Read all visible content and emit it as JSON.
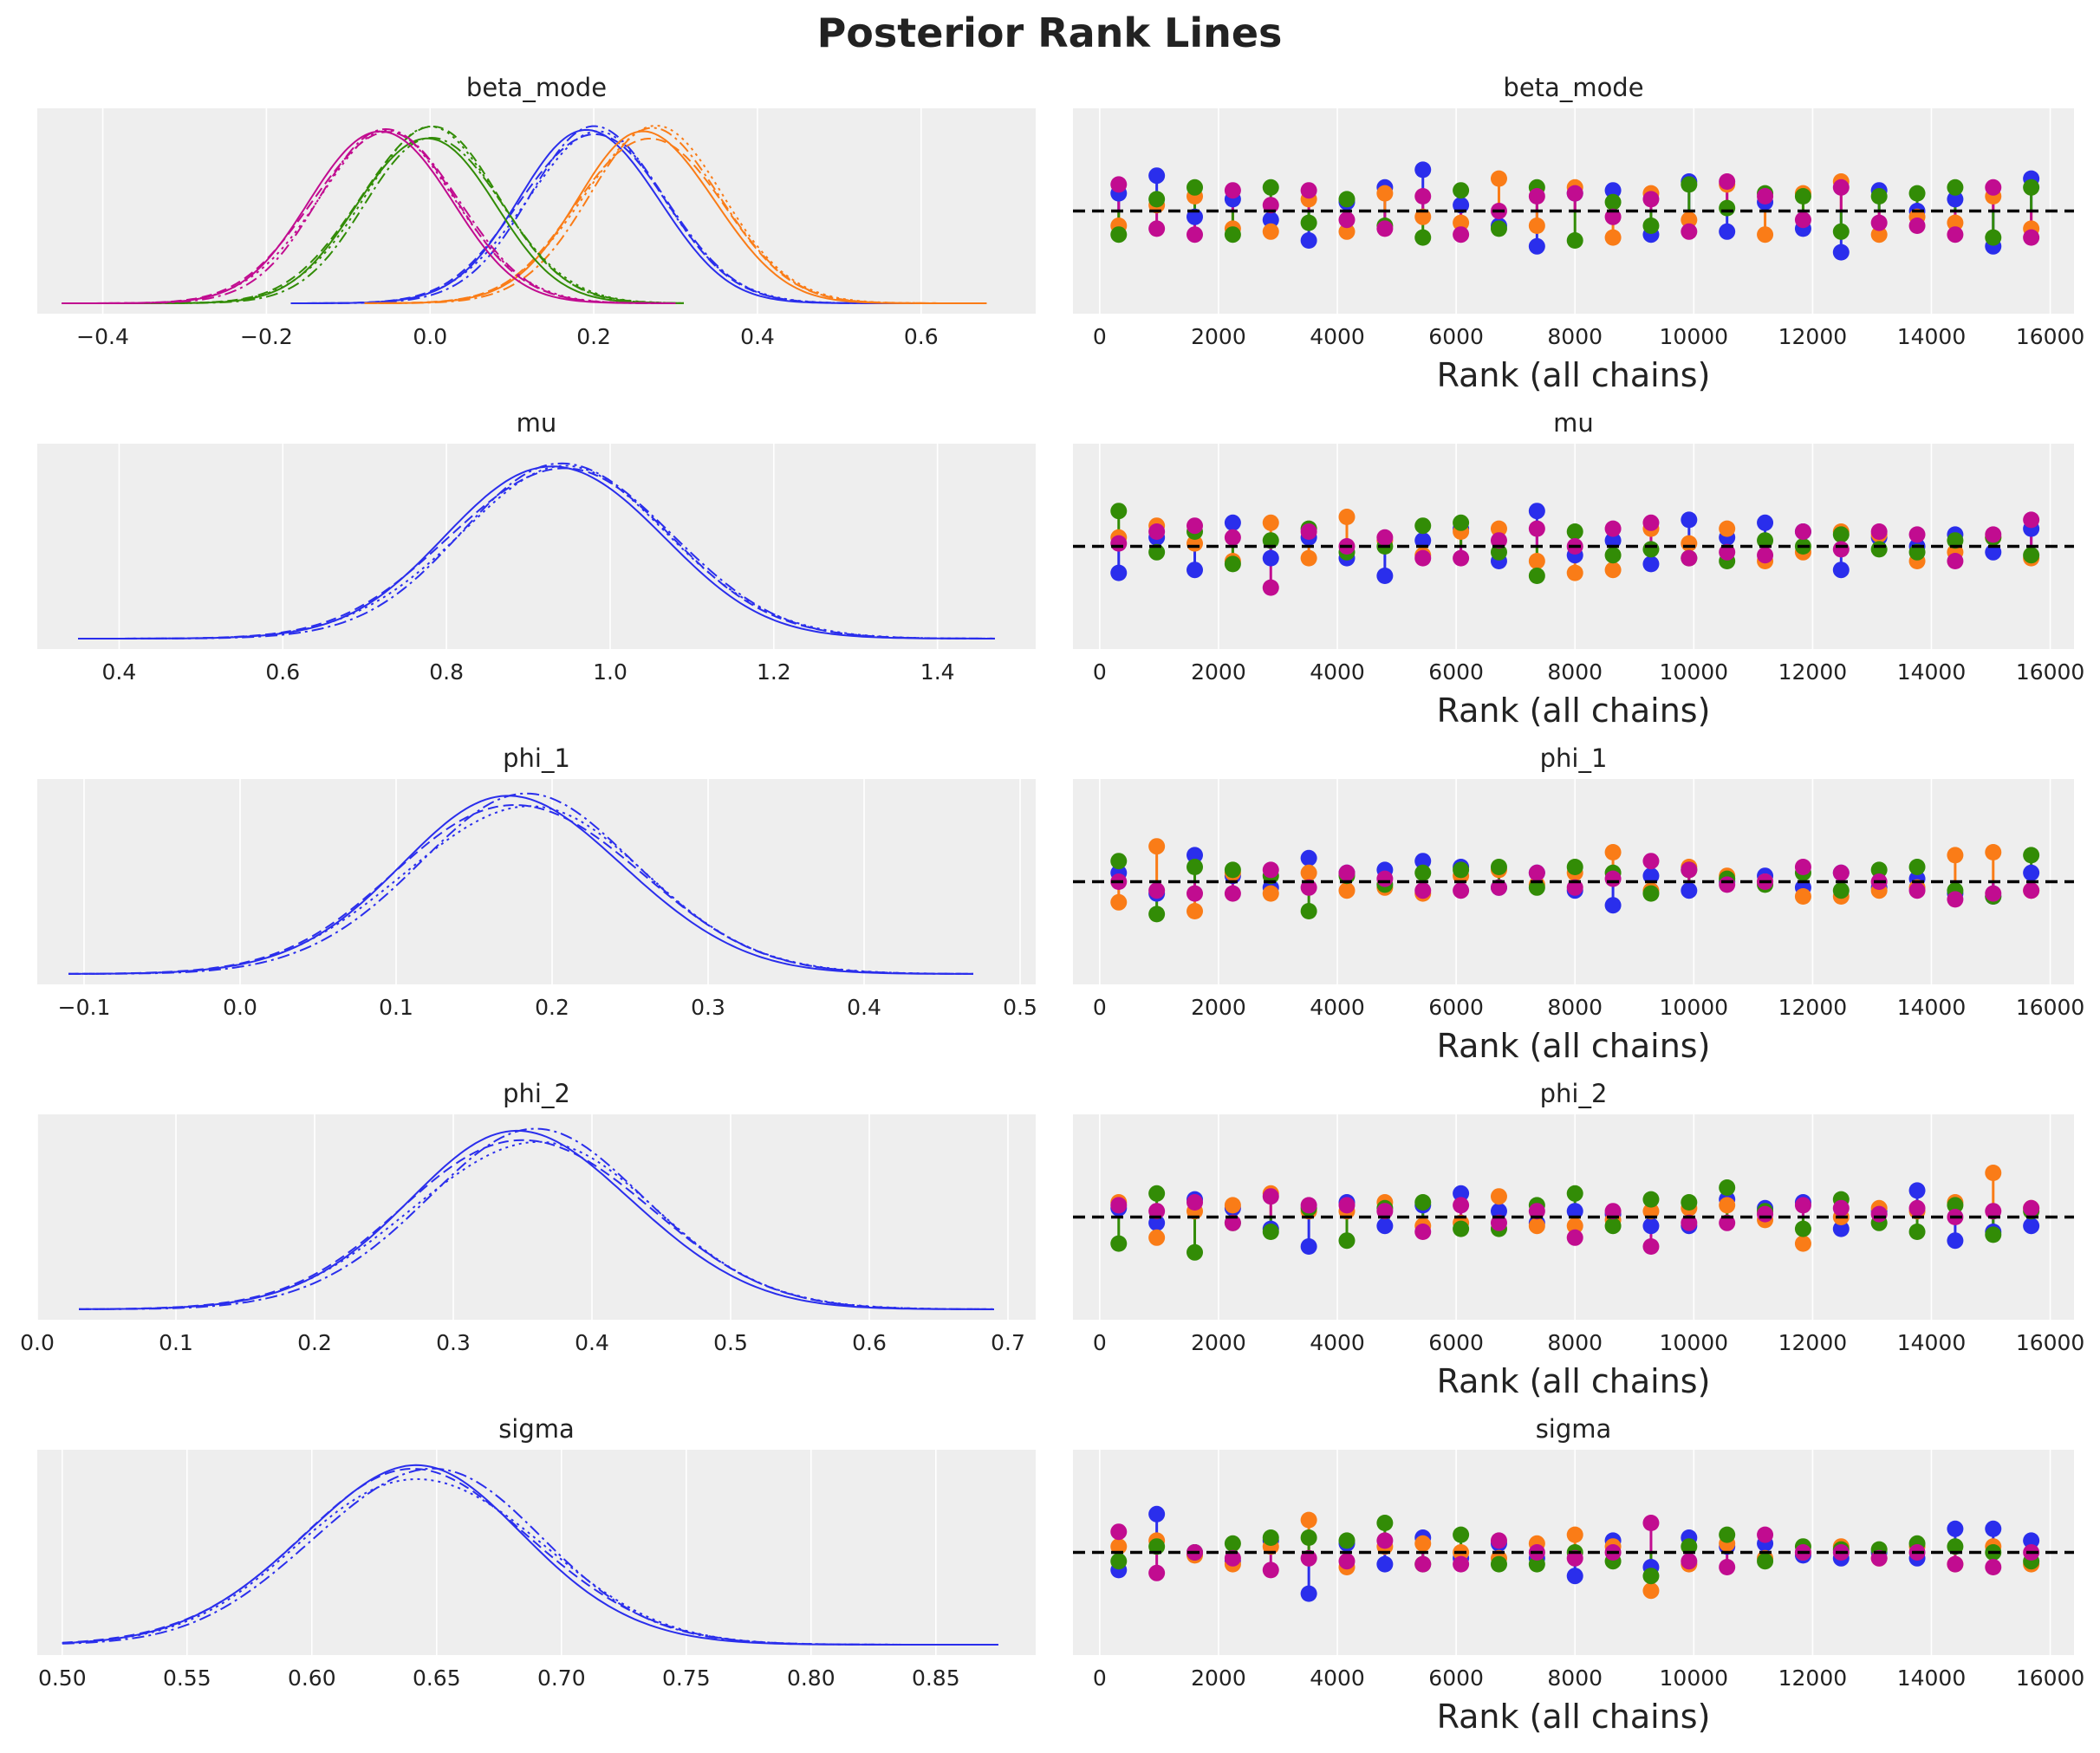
{
  "figure": {
    "title": "Posterior Rank Lines",
    "chain_colors": [
      "#2a2eec",
      "#fa7c17",
      "#328c06",
      "#c10c90"
    ],
    "chain_linestyles": [
      "solid",
      "dashed",
      "dotted",
      "dashdot"
    ],
    "background": "#eeeeee",
    "gridlines": "white, vertical"
  },
  "chart_data": [
    {
      "type": "line",
      "subtype": "kde",
      "title": "beta_mode",
      "xlim": [
        -0.48,
        0.74
      ],
      "xticks": [
        -0.4,
        -0.2,
        0.0,
        0.2,
        0.4,
        0.6
      ],
      "xtick_labels": [
        "−0.4",
        "−0.2",
        "0.0",
        "0.2",
        "0.4",
        "0.6"
      ],
      "xlabel": "",
      "series": [
        {
          "color": "#2a2eec",
          "mean": 0.2,
          "sd": 0.085,
          "xmin": -0.17,
          "xmax": 0.6,
          "curves": 4
        },
        {
          "color": "#fa7c17",
          "mean": 0.27,
          "sd": 0.085,
          "xmin": -0.08,
          "xmax": 0.68,
          "curves": 4
        },
        {
          "color": "#328c06",
          "mean": 0.0,
          "sd": 0.083,
          "xmin": -0.4,
          "xmax": 0.31,
          "curves": 4
        },
        {
          "color": "#c10c90",
          "mean": -0.055,
          "sd": 0.085,
          "xmin": -0.45,
          "xmax": 0.3,
          "curves": 4
        }
      ]
    },
    {
      "type": "scatter",
      "subtype": "rank_vlines",
      "title": "beta_mode",
      "xlim": [
        -450,
        16400
      ],
      "xticks": [
        0,
        2000,
        4000,
        6000,
        8000,
        10000,
        12000,
        14000,
        16000
      ],
      "xtick_labels": [
        "0",
        "2000",
        "4000",
        "6000",
        "8000",
        "10000",
        "12000",
        "14000",
        "16000"
      ],
      "xlabel": "Rank (all chains)",
      "bin_centers": [
        320,
        960,
        1600,
        2240,
        2880,
        3520,
        4160,
        4800,
        5440,
        6080,
        6720,
        7360,
        8000,
        8640,
        9280,
        9920,
        10560,
        11200,
        11840,
        12480,
        13120,
        13760,
        14400,
        15040,
        15680
      ],
      "deviations": [
        [
          0.06,
          0.12,
          -0.02,
          0.04,
          -0.03,
          -0.1,
          0.03,
          0.08,
          0.14,
          0.02,
          -0.05,
          -0.12,
          0.06,
          0.07,
          -0.08,
          0.1,
          -0.07,
          0.03,
          -0.06,
          -0.14,
          0.07,
          0.0,
          0.04,
          -0.12,
          0.11
        ],
        [
          -0.05,
          0.02,
          0.05,
          -0.06,
          -0.07,
          0.04,
          -0.07,
          0.06,
          -0.02,
          -0.04,
          0.11,
          -0.05,
          0.08,
          -0.09,
          0.06,
          -0.03,
          0.09,
          -0.08,
          0.06,
          0.1,
          -0.08,
          -0.02,
          -0.04,
          0.05,
          -0.06
        ],
        [
          -0.08,
          0.04,
          0.08,
          -0.08,
          0.08,
          -0.04,
          0.04,
          -0.05,
          -0.09,
          0.07,
          -0.06,
          0.08,
          -0.1,
          0.03,
          -0.05,
          0.09,
          0.01,
          0.06,
          0.05,
          -0.07,
          0.05,
          0.06,
          0.08,
          -0.09,
          0.08
        ],
        [
          0.09,
          -0.06,
          -0.08,
          0.07,
          0.02,
          0.07,
          -0.03,
          -0.06,
          0.05,
          -0.08,
          0.0,
          0.05,
          0.06,
          -0.02,
          0.04,
          -0.07,
          0.1,
          0.05,
          -0.03,
          0.08,
          -0.04,
          -0.05,
          -0.08,
          0.08,
          -0.09
        ]
      ]
    },
    {
      "type": "line",
      "subtype": "kde",
      "title": "mu",
      "xlim": [
        0.3,
        1.52
      ],
      "xticks": [
        0.4,
        0.6,
        0.8,
        1.0,
        1.2,
        1.4
      ],
      "xtick_labels": [
        "0.4",
        "0.6",
        "0.8",
        "1.0",
        "1.2",
        "1.4"
      ],
      "xlabel": "",
      "series": [
        {
          "color": "#2a2eec",
          "mean": 0.94,
          "sd": 0.13,
          "xmin": 0.35,
          "xmax": 1.47,
          "curves": 4
        }
      ]
    },
    {
      "type": "scatter",
      "subtype": "rank_vlines",
      "title": "mu",
      "xlim": [
        -450,
        16400
      ],
      "xticks": [
        0,
        2000,
        4000,
        6000,
        8000,
        10000,
        12000,
        14000,
        16000
      ],
      "xtick_labels": [
        "0",
        "2000",
        "4000",
        "6000",
        "8000",
        "10000",
        "12000",
        "14000",
        "16000"
      ],
      "xlabel": "Rank (all chains)",
      "bin_centers": [
        320,
        960,
        1600,
        2240,
        2880,
        3520,
        4160,
        4800,
        5440,
        6080,
        6720,
        7360,
        8000,
        8640,
        9280,
        9920,
        10560,
        11200,
        11840,
        12480,
        13120,
        13760,
        14400,
        15040,
        15680
      ],
      "deviations": [
        [
          -0.09,
          0.03,
          -0.08,
          0.08,
          -0.04,
          0.03,
          -0.04,
          -0.1,
          0.02,
          0.06,
          -0.05,
          0.12,
          -0.03,
          0.02,
          -0.06,
          0.09,
          0.03,
          0.08,
          0.05,
          -0.08,
          0.03,
          0.0,
          0.04,
          -0.02,
          0.06
        ],
        [
          0.03,
          0.07,
          0.01,
          -0.05,
          0.08,
          -0.04,
          0.1,
          0.02,
          -0.03,
          0.05,
          0.06,
          -0.05,
          -0.09,
          -0.08,
          0.06,
          0.01,
          0.06,
          -0.05,
          -0.02,
          0.05,
          0.04,
          -0.05,
          -0.02,
          0.03,
          -0.04
        ],
        [
          0.12,
          -0.02,
          0.05,
          -0.06,
          0.02,
          0.06,
          -0.02,
          0.0,
          0.07,
          0.08,
          -0.02,
          -0.1,
          0.05,
          -0.03,
          -0.01,
          -0.04,
          -0.05,
          0.02,
          0.0,
          0.04,
          -0.01,
          -0.02,
          0.02,
          0.03,
          -0.03
        ],
        [
          0.01,
          0.05,
          0.07,
          0.03,
          -0.14,
          0.05,
          0.0,
          0.03,
          -0.04,
          -0.04,
          0.02,
          0.06,
          0.0,
          0.06,
          0.08,
          -0.04,
          -0.02,
          -0.03,
          0.05,
          -0.01,
          0.05,
          0.04,
          -0.05,
          0.04,
          0.09
        ]
      ]
    },
    {
      "type": "line",
      "subtype": "kde",
      "title": "phi_1",
      "xlim": [
        -0.13,
        0.51
      ],
      "xticks": [
        -0.1,
        0.0,
        0.1,
        0.2,
        0.3,
        0.4,
        0.5
      ],
      "xtick_labels": [
        "−0.1",
        "0.0",
        "0.1",
        "0.2",
        "0.3",
        "0.4",
        "0.5"
      ],
      "xlabel": "",
      "series": [
        {
          "color": "#2a2eec",
          "mean": 0.18,
          "sd": 0.075,
          "xmin": -0.11,
          "xmax": 0.47,
          "curves": 4
        }
      ]
    },
    {
      "type": "scatter",
      "subtype": "rank_vlines",
      "title": "phi_1",
      "xlim": [
        -450,
        16400
      ],
      "xticks": [
        0,
        2000,
        4000,
        6000,
        8000,
        10000,
        12000,
        14000,
        16000
      ],
      "xtick_labels": [
        "0",
        "2000",
        "4000",
        "6000",
        "8000",
        "10000",
        "12000",
        "14000",
        "16000"
      ],
      "xlabel": "Rank (all chains)",
      "bin_centers": [
        320,
        960,
        1600,
        2240,
        2880,
        3520,
        4160,
        4800,
        5440,
        6080,
        6720,
        7360,
        8000,
        8640,
        9280,
        9920,
        10560,
        11200,
        11840,
        12480,
        13120,
        13760,
        14400,
        15040,
        15680
      ],
      "deviations": [
        [
          0.03,
          -0.04,
          0.09,
          0.02,
          -0.02,
          0.08,
          0.03,
          0.04,
          0.07,
          0.05,
          -0.02,
          0.03,
          -0.03,
          -0.08,
          0.02,
          -0.03,
          0.0,
          0.02,
          -0.02,
          0.03,
          -0.02,
          0.01,
          -0.04,
          -0.05,
          0.03
        ],
        [
          -0.07,
          0.12,
          -0.1,
          0.03,
          -0.04,
          0.03,
          -0.03,
          -0.02,
          -0.04,
          0.02,
          0.04,
          -0.01,
          0.03,
          0.1,
          -0.03,
          0.05,
          0.02,
          0.0,
          -0.05,
          -0.05,
          -0.03,
          -0.02,
          0.09,
          0.1,
          -0.03
        ],
        [
          0.07,
          -0.11,
          0.05,
          0.04,
          0.02,
          -0.1,
          0.02,
          -0.01,
          0.03,
          0.04,
          0.05,
          -0.02,
          0.05,
          0.03,
          -0.04,
          0.04,
          0.01,
          -0.01,
          0.03,
          -0.03,
          0.04,
          0.05,
          -0.03,
          -0.05,
          0.09
        ],
        [
          0.0,
          -0.03,
          -0.04,
          -0.04,
          0.04,
          -0.02,
          0.03,
          0.01,
          -0.03,
          -0.03,
          -0.02,
          0.03,
          -0.02,
          0.01,
          0.07,
          0.04,
          -0.01,
          0.0,
          0.05,
          0.03,
          0.0,
          -0.03,
          -0.06,
          -0.04,
          -0.03
        ]
      ]
    },
    {
      "type": "line",
      "subtype": "kde",
      "title": "phi_2",
      "xlim": [
        0.0,
        0.72
      ],
      "xticks": [
        0.0,
        0.1,
        0.2,
        0.3,
        0.4,
        0.5,
        0.6,
        0.7
      ],
      "xtick_labels": [
        "0.0",
        "0.1",
        "0.2",
        "0.3",
        "0.4",
        "0.5",
        "0.6",
        "0.7"
      ],
      "xlabel": "",
      "series": [
        {
          "color": "#2a2eec",
          "mean": 0.355,
          "sd": 0.085,
          "xmin": 0.03,
          "xmax": 0.69,
          "curves": 4
        }
      ]
    },
    {
      "type": "scatter",
      "subtype": "rank_vlines",
      "title": "phi_2",
      "xlim": [
        -450,
        16400
      ],
      "xticks": [
        0,
        2000,
        4000,
        6000,
        8000,
        10000,
        12000,
        14000,
        16000
      ],
      "xtick_labels": [
        "0",
        "2000",
        "4000",
        "6000",
        "8000",
        "10000",
        "12000",
        "14000",
        "16000"
      ],
      "xlabel": "Rank (all chains)",
      "bin_centers": [
        320,
        960,
        1600,
        2240,
        2880,
        3520,
        4160,
        4800,
        5440,
        6080,
        6720,
        7360,
        8000,
        8640,
        9280,
        9920,
        10560,
        11200,
        11840,
        12480,
        13120,
        13760,
        14400,
        15040,
        15680
      ],
      "deviations": [
        [
          0.03,
          -0.02,
          0.06,
          0.03,
          -0.04,
          -0.1,
          0.05,
          -0.03,
          0.04,
          0.08,
          0.02,
          -0.02,
          0.02,
          0.01,
          -0.03,
          -0.03,
          0.06,
          0.03,
          0.05,
          -0.04,
          0.02,
          0.09,
          -0.08,
          -0.05,
          -0.03
        ],
        [
          0.05,
          -0.07,
          0.02,
          0.04,
          0.08,
          0.02,
          0.02,
          0.05,
          -0.03,
          -0.02,
          0.07,
          -0.03,
          -0.03,
          -0.01,
          0.02,
          0.03,
          0.04,
          -0.01,
          -0.09,
          0.0,
          0.03,
          0.02,
          0.05,
          0.15,
          0.03
        ],
        [
          -0.09,
          0.08,
          -0.12,
          -0.02,
          -0.05,
          0.03,
          -0.08,
          0.03,
          0.05,
          -0.04,
          -0.04,
          0.04,
          0.08,
          -0.03,
          0.06,
          0.05,
          0.1,
          0.02,
          -0.04,
          0.06,
          -0.02,
          -0.05,
          0.04,
          -0.06,
          0.02
        ],
        [
          0.04,
          0.02,
          0.05,
          -0.02,
          0.07,
          0.04,
          0.04,
          0.02,
          -0.05,
          0.04,
          -0.02,
          0.02,
          -0.07,
          0.02,
          -0.1,
          -0.02,
          -0.02,
          0.01,
          0.04,
          0.03,
          0.01,
          0.03,
          0.0,
          0.02,
          0.03
        ]
      ]
    },
    {
      "type": "line",
      "subtype": "kde",
      "title": "sigma",
      "xlim": [
        0.49,
        0.89
      ],
      "xticks": [
        0.5,
        0.55,
        0.6,
        0.65,
        0.7,
        0.75,
        0.8,
        0.85
      ],
      "xtick_labels": [
        "0.50",
        "0.55",
        "0.60",
        "0.65",
        "0.70",
        "0.75",
        "0.80",
        "0.85"
      ],
      "xlabel": "",
      "series": [
        {
          "color": "#2a2eec",
          "mean": 0.643,
          "sd": 0.047,
          "xmin": 0.5,
          "xmax": 0.875,
          "curves": 4
        }
      ]
    },
    {
      "type": "scatter",
      "subtype": "rank_vlines",
      "title": "sigma",
      "xlim": [
        -450,
        16400
      ],
      "xticks": [
        0,
        2000,
        4000,
        6000,
        8000,
        10000,
        12000,
        14000,
        16000
      ],
      "xtick_labels": [
        "0",
        "2000",
        "4000",
        "6000",
        "8000",
        "10000",
        "12000",
        "14000",
        "16000"
      ],
      "xlabel": "Rank (all chains)",
      "bin_centers": [
        320,
        960,
        1600,
        2240,
        2880,
        3520,
        4160,
        4800,
        5440,
        6080,
        6720,
        7360,
        8000,
        8640,
        9280,
        9920,
        10560,
        11200,
        11840,
        12480,
        13120,
        13760,
        14400,
        15040,
        15680
      ],
      "deviations": [
        [
          -0.06,
          0.13,
          0.0,
          -0.03,
          0.04,
          -0.14,
          0.03,
          -0.04,
          0.05,
          -0.02,
          0.03,
          -0.02,
          -0.08,
          0.04,
          -0.05,
          0.05,
          0.02,
          0.03,
          -0.01,
          -0.02,
          0.0,
          -0.02,
          0.08,
          0.08,
          0.04
        ],
        [
          0.02,
          0.04,
          -0.01,
          -0.04,
          0.02,
          0.11,
          -0.05,
          0.02,
          0.03,
          0.0,
          -0.02,
          0.03,
          0.06,
          0.02,
          -0.13,
          -0.04,
          0.03,
          -0.02,
          0.0,
          0.02,
          -0.02,
          0.02,
          -0.04,
          0.02,
          -0.04
        ],
        [
          -0.03,
          0.02,
          0.0,
          0.03,
          0.05,
          0.05,
          0.04,
          0.1,
          -0.04,
          0.06,
          -0.04,
          -0.04,
          0.0,
          -0.03,
          -0.08,
          0.02,
          0.06,
          -0.03,
          0.02,
          0.01,
          0.01,
          0.03,
          0.02,
          0.0,
          -0.03
        ],
        [
          0.07,
          -0.07,
          0.0,
          -0.02,
          -0.06,
          -0.02,
          -0.03,
          0.04,
          -0.04,
          -0.04,
          0.04,
          0.0,
          -0.02,
          0.0,
          0.1,
          -0.03,
          -0.05,
          0.06,
          0.0,
          0.0,
          -0.02,
          0.0,
          -0.04,
          -0.05,
          0.0
        ]
      ]
    }
  ]
}
